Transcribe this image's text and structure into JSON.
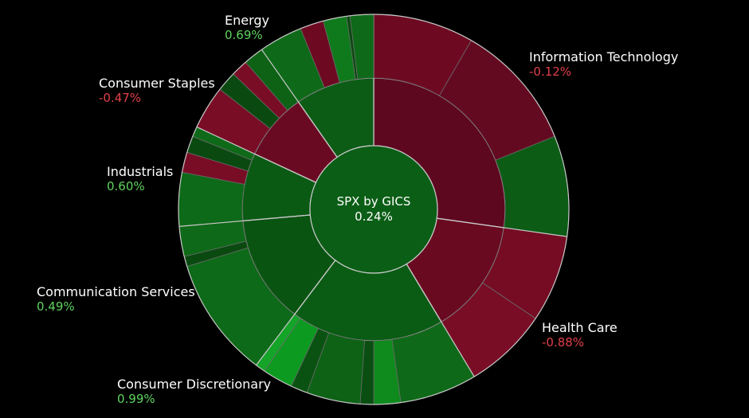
{
  "chart_data": {
    "type": "sunburst",
    "title": "SPX by GICS",
    "center_value": "0.24%",
    "sectors": [
      {
        "name": "Information Technology",
        "value": "-0.12%"
      },
      {
        "name": "Health Care",
        "value": "-0.88%"
      },
      {
        "name": "Consumer Discretionary",
        "value": "0.99%"
      },
      {
        "name": "Communication Services",
        "value": "0.49%"
      },
      {
        "name": "Industrials",
        "value": "0.60%"
      },
      {
        "name": "Consumer Staples",
        "value": "-0.47%"
      },
      {
        "name": "Energy",
        "value": "0.69%"
      }
    ]
  },
  "colors": {
    "positive_text": "#5ed35e",
    "negative_text": "#e0404a",
    "center_fill": "#0a5a14"
  }
}
